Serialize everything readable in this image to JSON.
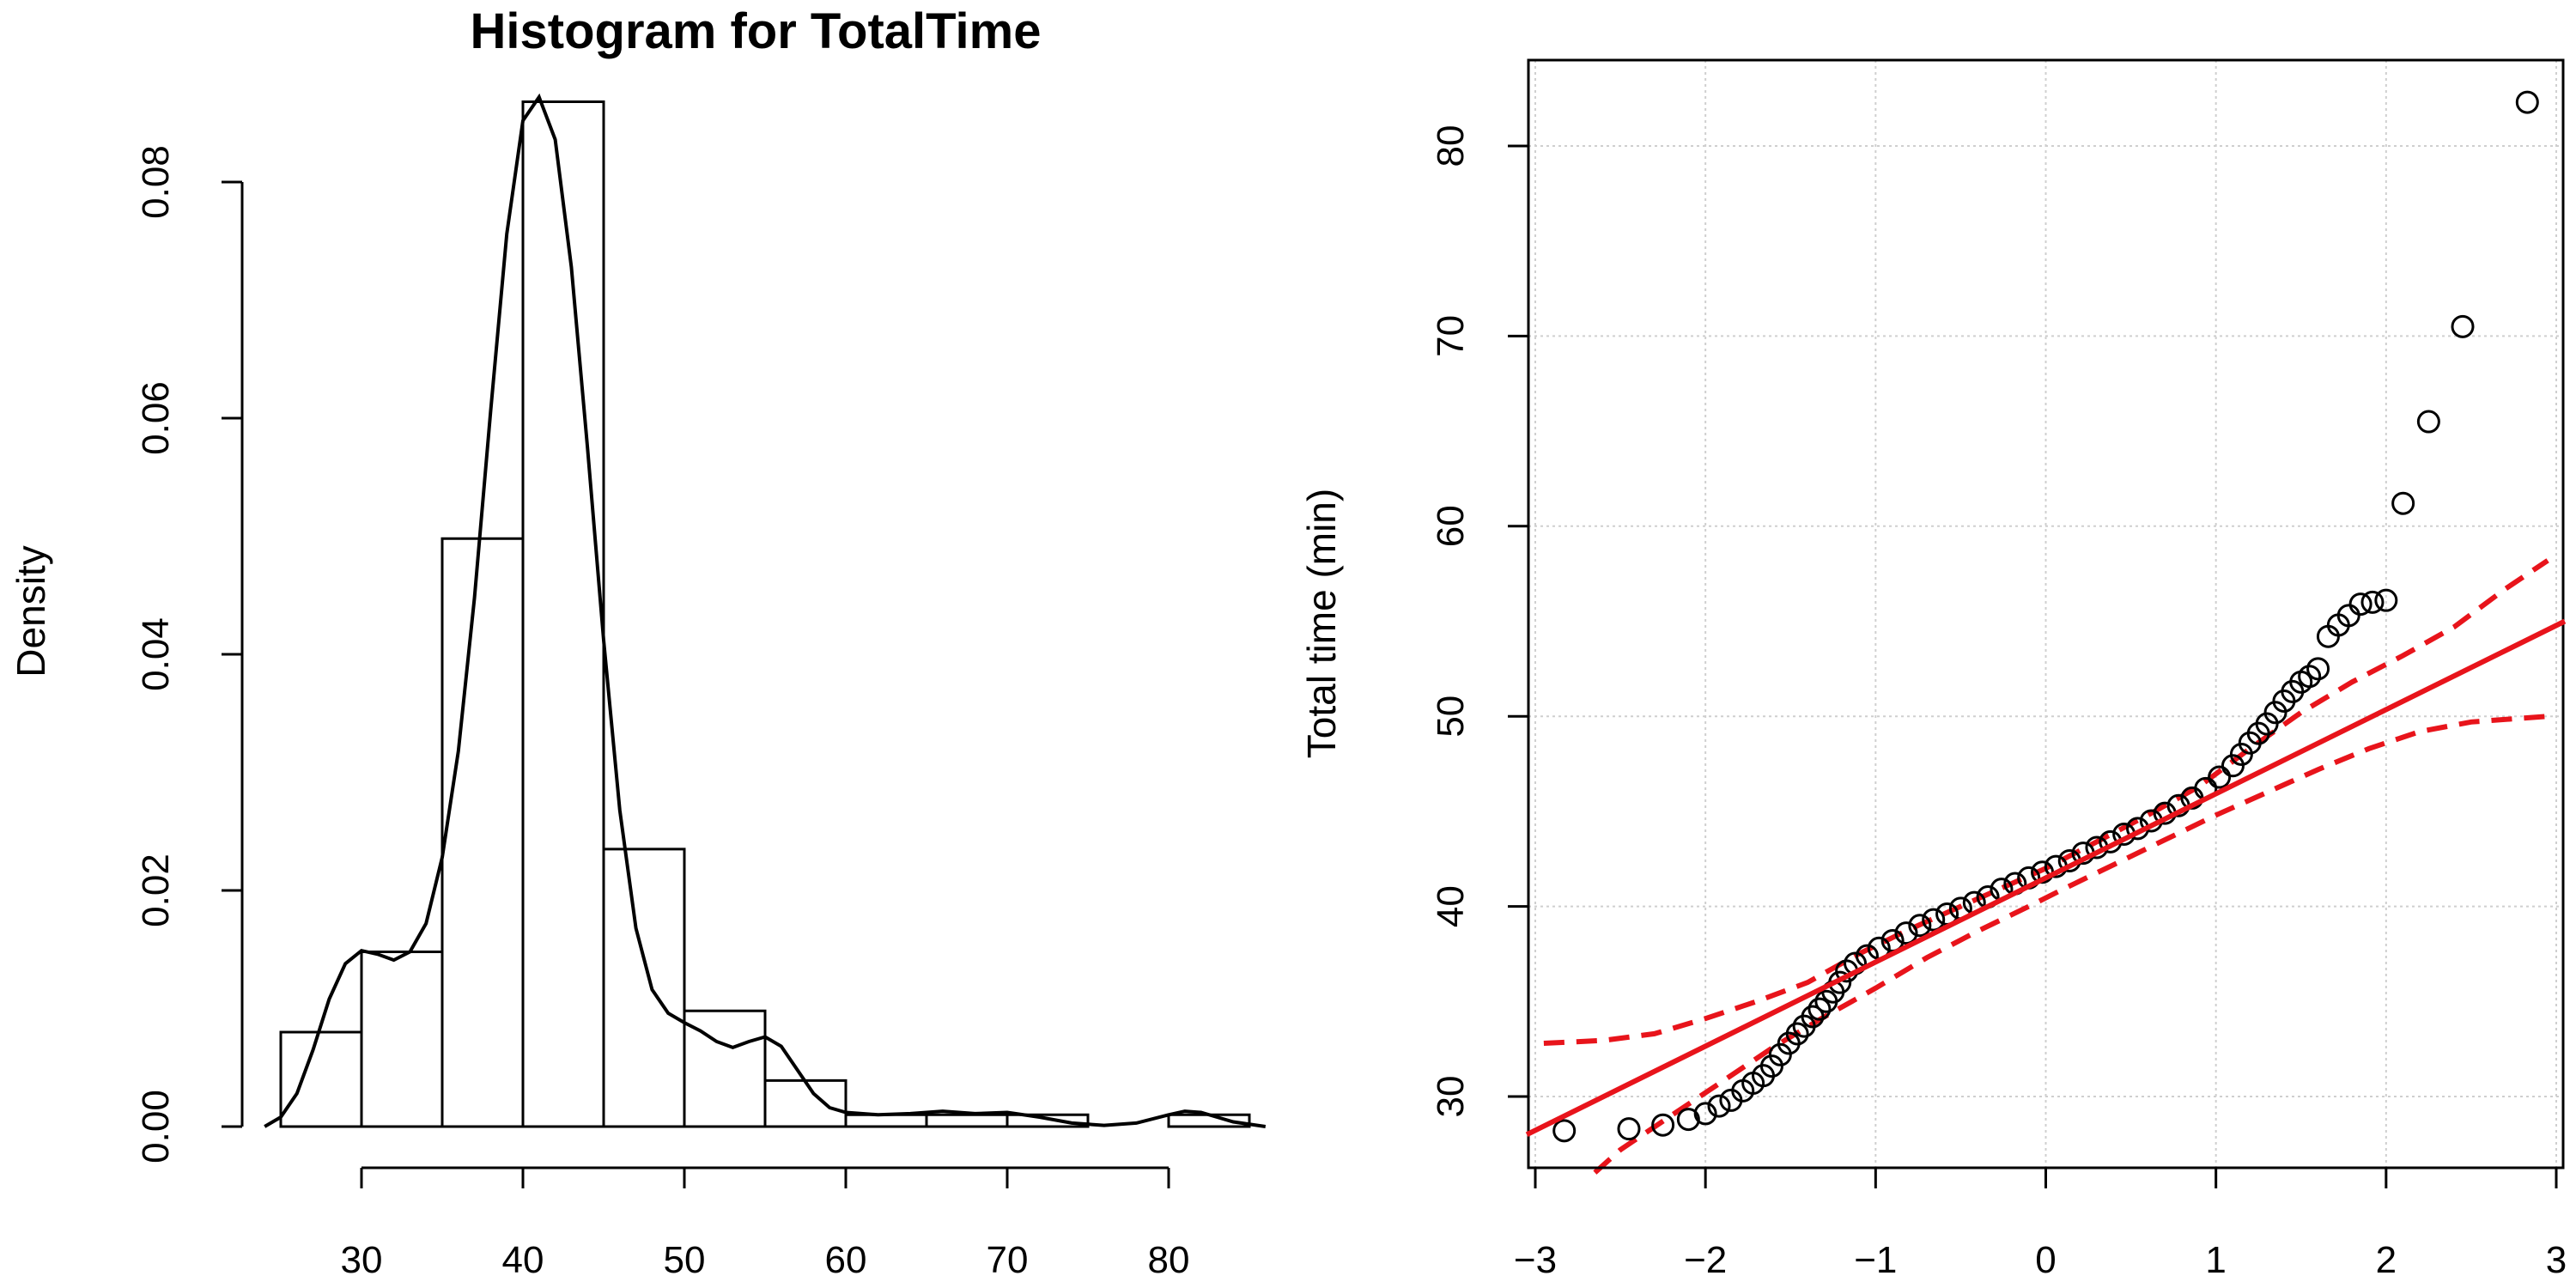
{
  "chart_data": [
    {
      "type": "bar",
      "subtype": "histogram",
      "title": "Histogram for TotalTime",
      "xlabel": "",
      "ylabel": "Density",
      "xlim": [
        25,
        85
      ],
      "ylim": [
        0,
        0.087
      ],
      "x_ticks": [
        30,
        40,
        50,
        60,
        70,
        80
      ],
      "x_tick_labels": [
        "30",
        "40",
        "50",
        "60",
        "70",
        "80"
      ],
      "y_ticks": [
        0.0,
        0.02,
        0.04,
        0.06,
        0.08
      ],
      "y_tick_labels": [
        "0.00",
        "0.02",
        "0.04",
        "0.06",
        "0.08"
      ],
      "bins": [
        {
          "start": 25,
          "end": 30,
          "density": 0.008
        },
        {
          "start": 30,
          "end": 35,
          "density": 0.0148
        },
        {
          "start": 35,
          "end": 40,
          "density": 0.0498
        },
        {
          "start": 40,
          "end": 45,
          "density": 0.0868
        },
        {
          "start": 45,
          "end": 50,
          "density": 0.0235
        },
        {
          "start": 50,
          "end": 55,
          "density": 0.0098
        },
        {
          "start": 55,
          "end": 60,
          "density": 0.0039
        },
        {
          "start": 60,
          "end": 65,
          "density": 0.001
        },
        {
          "start": 65,
          "end": 70,
          "density": 0.001
        },
        {
          "start": 70,
          "end": 75,
          "density": 0.001
        },
        {
          "start": 75,
          "end": 80,
          "density": 0.0
        },
        {
          "start": 80,
          "end": 85,
          "density": 0.001
        }
      ],
      "density_curve": {
        "x": [
          24,
          25,
          26,
          27,
          28,
          29,
          30,
          31,
          32,
          33,
          34,
          35,
          36,
          37,
          38,
          39,
          40,
          41,
          42,
          43,
          44,
          45,
          46,
          47,
          48,
          49,
          50,
          51,
          52,
          53,
          54,
          55,
          56,
          57,
          58,
          59,
          60,
          62,
          64,
          66,
          68,
          70,
          72,
          74,
          76,
          78,
          80,
          81,
          82,
          83,
          84,
          86
        ],
        "y": [
          0.0,
          0.0008,
          0.0028,
          0.0065,
          0.0108,
          0.0138,
          0.0149,
          0.0146,
          0.0141,
          0.0148,
          0.0172,
          0.0228,
          0.0318,
          0.0448,
          0.0606,
          0.0756,
          0.0852,
          0.0872,
          0.0836,
          0.0728,
          0.0575,
          0.0412,
          0.0268,
          0.0168,
          0.0116,
          0.0096,
          0.0088,
          0.0081,
          0.0072,
          0.0067,
          0.0072,
          0.0076,
          0.0068,
          0.0048,
          0.0028,
          0.0016,
          0.0012,
          0.001,
          0.0011,
          0.0013,
          0.0011,
          0.0012,
          0.0008,
          0.0003,
          0.0001,
          0.0003,
          0.001,
          0.0013,
          0.0012,
          0.0008,
          0.0004,
          0.0
        ]
      }
    },
    {
      "type": "scatter",
      "subtype": "qq-plot",
      "title": "",
      "xlabel": "",
      "ylabel": "Total time (min)",
      "xlim": [
        -3.05,
        3.05
      ],
      "ylim": [
        26.8,
        84.6
      ],
      "grid": true,
      "x_ticks": [
        -3,
        -2,
        -1,
        0,
        1,
        2,
        3
      ],
      "x_tick_labels": [
        "−3",
        "−2",
        "−1",
        "0",
        "1",
        "2",
        "3"
      ],
      "y_ticks": [
        30,
        40,
        50,
        60,
        70,
        80
      ],
      "y_tick_labels": [
        "30",
        "40",
        "50",
        "60",
        "70",
        "80"
      ],
      "points": {
        "x": [
          -2.83,
          -2.45,
          -2.25,
          -2.1,
          -2.0,
          -1.92,
          -1.85,
          -1.78,
          -1.72,
          -1.66,
          -1.61,
          -1.56,
          -1.51,
          -1.46,
          -1.42,
          -1.37,
          -1.33,
          -1.29,
          -1.25,
          -1.21,
          -1.17,
          -1.12,
          -1.05,
          -0.98,
          -0.9,
          -0.82,
          -0.74,
          -0.66,
          -0.58,
          -0.5,
          -0.42,
          -0.34,
          -0.26,
          -0.18,
          -0.1,
          -0.02,
          0.06,
          0.14,
          0.22,
          0.3,
          0.38,
          0.46,
          0.54,
          0.62,
          0.7,
          0.78,
          0.86,
          0.94,
          1.02,
          1.1,
          1.15,
          1.2,
          1.25,
          1.3,
          1.35,
          1.4,
          1.45,
          1.5,
          1.55,
          1.6,
          1.66,
          1.72,
          1.78,
          1.85,
          1.92,
          2.0,
          2.1,
          2.25,
          2.45,
          2.83
        ],
        "y": [
          28.2,
          28.3,
          28.5,
          28.8,
          29.1,
          29.5,
          29.8,
          30.3,
          30.7,
          31.1,
          31.6,
          32.2,
          32.8,
          33.3,
          33.7,
          34.2,
          34.6,
          35.0,
          35.5,
          36.0,
          36.6,
          37.0,
          37.4,
          37.8,
          38.2,
          38.6,
          39.0,
          39.3,
          39.6,
          39.9,
          40.2,
          40.5,
          40.9,
          41.2,
          41.5,
          41.8,
          42.1,
          42.4,
          42.8,
          43.1,
          43.4,
          43.8,
          44.1,
          44.5,
          44.9,
          45.3,
          45.7,
          46.2,
          46.8,
          47.4,
          48.0,
          48.6,
          49.1,
          49.6,
          50.2,
          50.8,
          51.3,
          51.8,
          52.1,
          52.5,
          54.2,
          54.8,
          55.3,
          55.9,
          56.0,
          56.1,
          61.2,
          65.5,
          70.5,
          82.3
        ]
      },
      "reference_line": {
        "x": [
          -3.05,
          3.05
        ],
        "y": [
          28.0,
          55.0
        ]
      },
      "confidence_band_upper": {
        "x": [
          -2.95,
          -2.6,
          -2.3,
          -2.0,
          -1.7,
          -1.4,
          -1.1,
          -0.8,
          -0.5,
          -0.2,
          0.0,
          0.3,
          0.6,
          0.9,
          1.2,
          1.5,
          1.8,
          2.1,
          2.4,
          2.7,
          2.95
        ],
        "y": [
          32.8,
          32.95,
          33.3,
          34.1,
          35.0,
          36.0,
          37.5,
          38.8,
          40.0,
          41.2,
          42.0,
          43.4,
          44.8,
          46.3,
          48.3,
          50.2,
          51.8,
          53.2,
          54.7,
          56.7,
          58.2
        ]
      },
      "confidence_band_lower": {
        "x": [
          -2.65,
          -2.5,
          -2.2,
          -1.9,
          -1.6,
          -1.3,
          -1.0,
          -0.7,
          -0.4,
          -0.1,
          0.1,
          0.4,
          0.7,
          1.0,
          1.3,
          1.6,
          1.9,
          2.2,
          2.5,
          2.95
        ],
        "y": [
          26.0,
          27.2,
          29.0,
          30.8,
          32.6,
          34.2,
          35.7,
          37.3,
          38.7,
          40.0,
          40.9,
          42.2,
          43.5,
          44.8,
          46.0,
          47.2,
          48.3,
          49.2,
          49.7,
          50.0
        ]
      }
    }
  ]
}
